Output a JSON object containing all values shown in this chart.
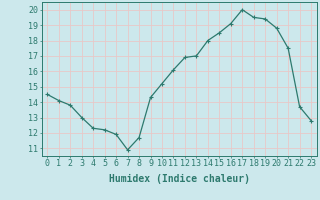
{
  "x": [
    0,
    1,
    2,
    3,
    4,
    5,
    6,
    7,
    8,
    9,
    10,
    11,
    12,
    13,
    14,
    15,
    16,
    17,
    18,
    19,
    20,
    21,
    22,
    23
  ],
  "y": [
    14.5,
    14.1,
    13.8,
    13.0,
    12.3,
    12.2,
    11.9,
    10.9,
    11.7,
    14.3,
    15.2,
    16.1,
    16.9,
    17.0,
    18.0,
    18.5,
    19.1,
    20.0,
    19.5,
    19.4,
    18.8,
    17.5,
    13.7,
    12.8
  ],
  "line_color": "#2d7a6e",
  "marker": "+",
  "xlabel": "Humidex (Indice chaleur)",
  "yticks": [
    11,
    12,
    13,
    14,
    15,
    16,
    17,
    18,
    19,
    20
  ],
  "xticks": [
    0,
    1,
    2,
    3,
    4,
    5,
    6,
    7,
    8,
    9,
    10,
    11,
    12,
    13,
    14,
    15,
    16,
    17,
    18,
    19,
    20,
    21,
    22,
    23
  ],
  "xlim": [
    -0.5,
    23.5
  ],
  "ylim": [
    10.5,
    20.5
  ],
  "bg_color": "#cce8ec",
  "grid_color": "#e8c8c8",
  "tick_color": "#2d7a6e",
  "font_size": 6,
  "xlabel_fontsize": 7
}
